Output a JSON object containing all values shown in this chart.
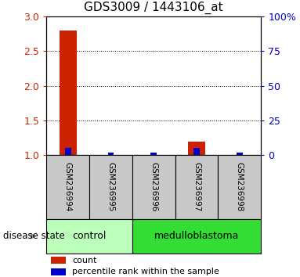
{
  "title": "GDS3009 / 1443106_at",
  "samples": [
    "GSM236994",
    "GSM236995",
    "GSM236996",
    "GSM236997",
    "GSM236998"
  ],
  "count_values": [
    2.8,
    1.0,
    1.0,
    1.2,
    1.0
  ],
  "percentile_values": [
    5.0,
    2.0,
    2.0,
    5.0,
    2.0
  ],
  "ylim_left": [
    1.0,
    3.0
  ],
  "ylim_right": [
    0,
    100
  ],
  "yticks_left": [
    1.0,
    1.5,
    2.0,
    2.5,
    3.0
  ],
  "yticks_right": [
    0,
    25,
    50,
    75,
    100
  ],
  "ytick_labels_right": [
    "0",
    "25",
    "50",
    "75",
    "100%"
  ],
  "groups": [
    {
      "label": "control",
      "samples": [
        0,
        1
      ],
      "color": "#bbffbb"
    },
    {
      "label": "medulloblastoma",
      "samples": [
        2,
        3,
        4
      ],
      "color": "#33dd33"
    }
  ],
  "bar_width": 0.4,
  "count_color": "#cc2200",
  "percentile_color": "#0000cc",
  "grid_color": "#000000",
  "sample_bg_color": "#c8c8c8",
  "label_disease_state": "disease state",
  "label_count": "count",
  "label_percentile": "percentile rank within the sample",
  "left_tick_color": "#cc2200",
  "right_tick_color": "#0000cc",
  "title_fontsize": 11,
  "legend_fontsize": 8,
  "sample_label_fontsize": 7.5,
  "group_label_fontsize": 9
}
